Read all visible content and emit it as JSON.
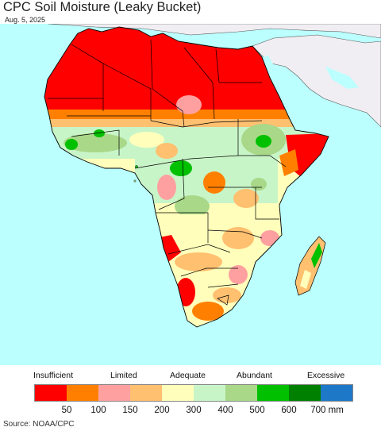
{
  "title": "CPC Soil Moisture (Leaky Bucket)",
  "date": "Aug. 5, 2025",
  "source": "Source: NOAA/CPC",
  "legend": {
    "categories": [
      "Insufficient",
      "Limited",
      "Adequate",
      "Abundant",
      "Excessive"
    ],
    "colors": [
      "#ff0000",
      "#ff8000",
      "#ffa0a0",
      "#ffc070",
      "#ffffbb",
      "#c8f5c8",
      "#a8d888",
      "#00c000",
      "#008000",
      "#1e78c8"
    ],
    "ticks": [
      "50",
      "100",
      "150",
      "200",
      "300",
      "400",
      "500",
      "600",
      "700 mm"
    ]
  },
  "colors": {
    "ocean": "#bbffff",
    "other_land": "#f0eef2",
    "border": "#000000"
  }
}
